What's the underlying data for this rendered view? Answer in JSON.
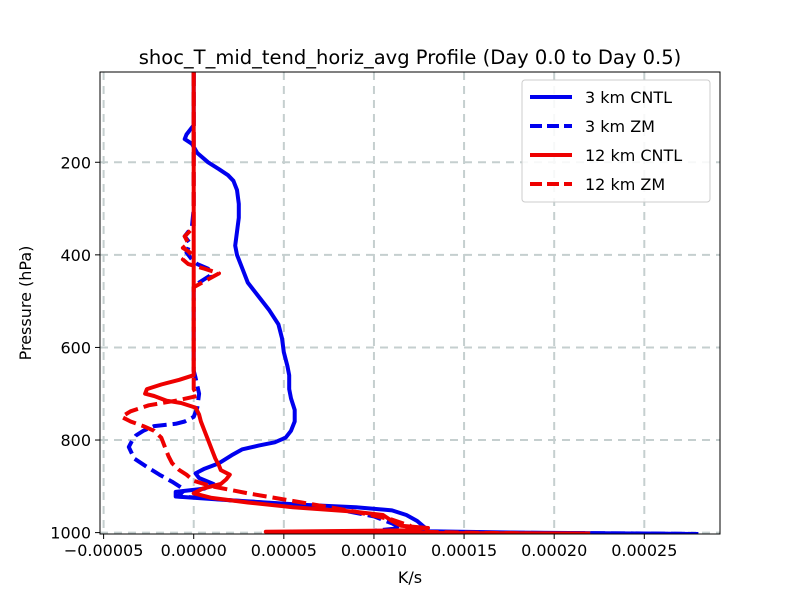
{
  "chart_data": {
    "type": "line",
    "title": "shoc_T_mid_tend_horiz_avg Profile (Day 0.0 to Day 0.5)",
    "xlabel": "K/s",
    "ylabel": "Pressure (hPa)",
    "xlim": [
      -5.2e-05,
      0.000292
    ],
    "ylim": [
      1003,
      5
    ],
    "y_inverted": true,
    "grid": true,
    "grid_style": "dashed",
    "legend_position": "upper-right",
    "x_ticks": [
      {
        "value": -5e-05,
        "label": "−0.00005"
      },
      {
        "value": 0.0,
        "label": "0.00000"
      },
      {
        "value": 5e-05,
        "label": "0.00005"
      },
      {
        "value": 0.0001,
        "label": "0.00010"
      },
      {
        "value": 0.00015,
        "label": "0.00015"
      },
      {
        "value": 0.0002,
        "label": "0.00020"
      },
      {
        "value": 0.00025,
        "label": "0.00025"
      }
    ],
    "y_ticks": [
      {
        "value": 200,
        "label": "200"
      },
      {
        "value": 400,
        "label": "400"
      },
      {
        "value": 600,
        "label": "600"
      },
      {
        "value": 800,
        "label": "800"
      },
      {
        "value": 1000,
        "label": "1000"
      }
    ],
    "series": [
      {
        "name": "3 km CNTL",
        "color": "#0000ee",
        "dash": "solid",
        "points": [
          [
            0.0,
            5
          ],
          [
            0.0,
            60
          ],
          [
            0.0,
            120
          ],
          [
            -4e-06,
            140
          ],
          [
            -5e-06,
            150
          ],
          [
            -1e-06,
            160
          ],
          [
            2e-06,
            180
          ],
          [
            8e-06,
            200
          ],
          [
            1.4e-05,
            215
          ],
          [
            1.9e-05,
            228
          ],
          [
            2.2e-05,
            240
          ],
          [
            2.4e-05,
            260
          ],
          [
            2.5e-05,
            290
          ],
          [
            2.5e-05,
            320
          ],
          [
            2.4e-05,
            350
          ],
          [
            2.3e-05,
            380
          ],
          [
            2.4e-05,
            400
          ],
          [
            2.7e-05,
            430
          ],
          [
            3e-05,
            460
          ],
          [
            3.6e-05,
            490
          ],
          [
            4.2e-05,
            520
          ],
          [
            4.7e-05,
            550
          ],
          [
            4.9e-05,
            580
          ],
          [
            5e-05,
            610
          ],
          [
            5.2e-05,
            640
          ],
          [
            5.3e-05,
            660
          ],
          [
            5.3e-05,
            690
          ],
          [
            5.4e-05,
            710
          ],
          [
            5.6e-05,
            735
          ],
          [
            5.6e-05,
            760
          ],
          [
            5.4e-05,
            780
          ],
          [
            5.1e-05,
            795
          ],
          [
            4.5e-05,
            805
          ],
          [
            3.6e-05,
            812
          ],
          [
            2.7e-05,
            820
          ],
          [
            2.1e-05,
            833
          ],
          [
            1.4e-05,
            850
          ],
          [
            6e-06,
            862
          ],
          [
            1e-06,
            872
          ],
          [
            3e-06,
            882
          ],
          [
            1.1e-05,
            895
          ],
          [
            6e-06,
            905
          ],
          [
            -1e-05,
            912
          ],
          [
            -1e-05,
            922
          ],
          [
            2e-05,
            930
          ],
          [
            4e-05,
            935
          ],
          [
            6e-05,
            940
          ],
          [
            9e-05,
            945
          ],
          [
            0.00011,
            952
          ],
          [
            0.000118,
            962
          ],
          [
            0.000124,
            975
          ],
          [
            0.000128,
            988
          ],
          [
            0.00013,
            997
          ],
          [
            0.00018,
            1000
          ],
          [
            0.00025,
            1002
          ],
          [
            0.000278,
            1003
          ]
        ]
      },
      {
        "name": "3 km ZM",
        "color": "#0000ee",
        "dash": "dashed",
        "points": [
          [
            0.0,
            5
          ],
          [
            0.0,
            300
          ],
          [
            -1e-06,
            340
          ],
          [
            -5e-06,
            360
          ],
          [
            -2e-06,
            375
          ],
          [
            -4e-06,
            395
          ],
          [
            -1e-06,
            410
          ],
          [
            2e-06,
            420
          ],
          [
            8e-06,
            430
          ],
          [
            9e-06,
            445
          ],
          [
            3e-06,
            460
          ],
          [
            0.0,
            470
          ],
          [
            0.0,
            560
          ],
          [
            0.0,
            650
          ],
          [
            1e-06,
            665
          ],
          [
            3e-06,
            700
          ],
          [
            2e-06,
            730
          ],
          [
            0.0,
            750
          ],
          [
            -5e-06,
            760
          ],
          [
            -1e-05,
            765
          ],
          [
            -2.2e-05,
            770
          ],
          [
            -2.8e-05,
            780
          ],
          [
            -3.2e-05,
            790
          ],
          [
            -3.4e-05,
            800
          ],
          [
            -3.6e-05,
            815
          ],
          [
            -3.3e-05,
            840
          ],
          [
            -2.6e-05,
            858
          ],
          [
            -1.9e-05,
            875
          ],
          [
            -1.2e-05,
            890
          ],
          [
            -8e-06,
            900
          ],
          [
            -5e-06,
            908
          ],
          [
            -7e-06,
            915
          ],
          [
            -9e-06,
            922
          ],
          [
            5e-06,
            925
          ],
          [
            2e-05,
            930
          ],
          [
            5e-05,
            938
          ],
          [
            8e-05,
            950
          ],
          [
            0.0001,
            965
          ],
          [
            0.00011,
            980
          ],
          [
            0.000115,
            990
          ],
          [
            0.0001,
            996
          ],
          [
            0.00016,
            1000
          ],
          [
            0.00025,
            1002
          ],
          [
            0.00028,
            1003
          ]
        ]
      },
      {
        "name": "12 km CNTL",
        "color": "#ee0000",
        "dash": "solid",
        "points": [
          [
            0.0,
            5
          ],
          [
            0.0,
            300
          ],
          [
            0.0,
            500
          ],
          [
            0.0,
            640
          ],
          [
            0.0,
            660
          ],
          [
            -8e-06,
            670
          ],
          [
            -1.8e-05,
            680
          ],
          [
            -2.6e-05,
            690
          ],
          [
            -2.7e-05,
            700
          ],
          [
            -2.2e-05,
            705
          ],
          [
            -1.5e-05,
            715
          ],
          [
            -7e-06,
            720
          ],
          [
            1e-06,
            730
          ],
          [
            3e-06,
            745
          ],
          [
            4e-06,
            760
          ],
          [
            6e-06,
            780
          ],
          [
            8e-06,
            800
          ],
          [
            1e-05,
            820
          ],
          [
            1.2e-05,
            840
          ],
          [
            1.4e-05,
            855
          ],
          [
            1.5e-05,
            865
          ],
          [
            2e-05,
            875
          ],
          [
            1.8e-05,
            885
          ],
          [
            1.5e-05,
            895
          ],
          [
            5e-06,
            905
          ],
          [
            0.0,
            915
          ],
          [
            1e-05,
            925
          ],
          [
            3e-05,
            935
          ],
          [
            5.5e-05,
            945
          ],
          [
            9e-05,
            955
          ],
          [
            0.000105,
            962
          ],
          [
            0.00011,
            975
          ],
          [
            0.000115,
            985
          ],
          [
            0.00013,
            990
          ],
          [
            0.00012,
            995
          ],
          [
            4e-05,
            998
          ],
          [
            5e-05,
            1000
          ],
          [
            0.00015,
            1001
          ],
          [
            0.00022,
            1002
          ]
        ]
      },
      {
        "name": "12 km ZM",
        "color": "#ee0000",
        "dash": "dashed",
        "points": [
          [
            0.0,
            5
          ],
          [
            0.0,
            340
          ],
          [
            -5e-06,
            360
          ],
          [
            -3e-06,
            375
          ],
          [
            -6e-06,
            385
          ],
          [
            -2e-06,
            395
          ],
          [
            -6e-06,
            410
          ],
          [
            -3e-06,
            420
          ],
          [
            6e-06,
            430
          ],
          [
            1.4e-05,
            440
          ],
          [
            7e-06,
            455
          ],
          [
            0.0,
            470
          ],
          [
            0.0,
            560
          ],
          [
            0.0,
            650
          ],
          [
            0.0,
            690
          ],
          [
            2e-06,
            705
          ],
          [
            -1e-05,
            715
          ],
          [
            -2.5e-05,
            725
          ],
          [
            -3.5e-05,
            738
          ],
          [
            -4e-05,
            750
          ],
          [
            -3.5e-05,
            760
          ],
          [
            -2.8e-05,
            770
          ],
          [
            -2.2e-05,
            780
          ],
          [
            -1.8e-05,
            795
          ],
          [
            -1.6e-05,
            815
          ],
          [
            -1.4e-05,
            835
          ],
          [
            -1.2e-05,
            850
          ],
          [
            -8e-06,
            865
          ],
          [
            -4e-06,
            875
          ],
          [
            0.0,
            888
          ],
          [
            1e-05,
            900
          ],
          [
            3e-05,
            915
          ],
          [
            6e-05,
            935
          ],
          [
            9e-05,
            955
          ],
          [
            0.00011,
            972
          ],
          [
            0.00012,
            985
          ],
          [
            0.000122,
            993
          ],
          [
            0.00011,
            997
          ],
          [
            0.00015,
            1000
          ],
          [
            0.00021,
            1003
          ]
        ]
      }
    ]
  }
}
